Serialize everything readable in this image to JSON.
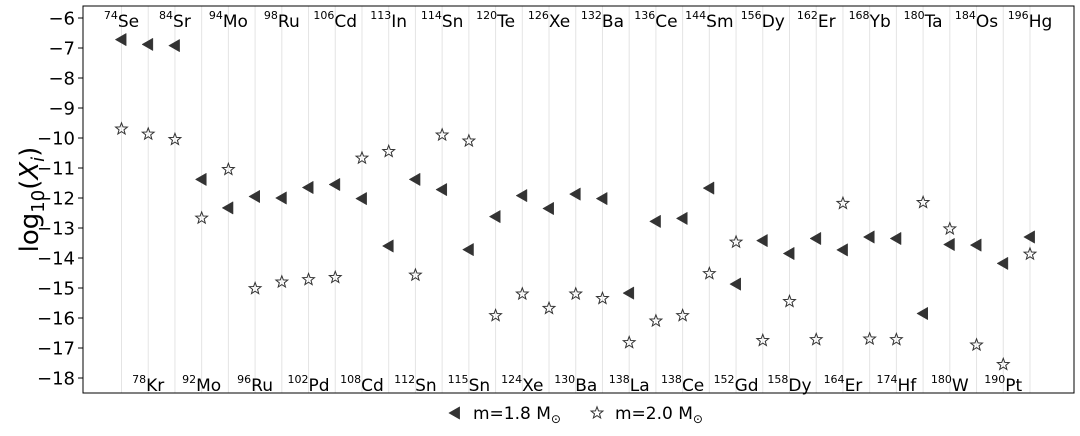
{
  "chart_data": {
    "type": "scatter",
    "title": "",
    "xlabel": "",
    "ylabel": "log10(Xi)",
    "ylabel_parts": {
      "base": "log",
      "sub": "10",
      "open": "(",
      "var": "X",
      "var_sub": "i",
      "close": ")"
    },
    "ylim": [
      -18.5,
      -5.6
    ],
    "yticks": [
      -6,
      -7,
      -8,
      -9,
      -10,
      -11,
      -12,
      -13,
      -14,
      -15,
      -16,
      -17,
      -18
    ],
    "grid": "vertical lines at each isotope",
    "legend_position": "bottom-center",
    "categories": [
      {
        "mass": "74",
        "el": "Se",
        "label_row": "top"
      },
      {
        "mass": "78",
        "el": "Kr",
        "label_row": "bottom"
      },
      {
        "mass": "84",
        "el": "Sr",
        "label_row": "top"
      },
      {
        "mass": "92",
        "el": "Mo",
        "label_row": "bottom"
      },
      {
        "mass": "94",
        "el": "Mo",
        "label_row": "top"
      },
      {
        "mass": "96",
        "el": "Ru",
        "label_row": "bottom"
      },
      {
        "mass": "98",
        "el": "Ru",
        "label_row": "top"
      },
      {
        "mass": "102",
        "el": "Pd",
        "label_row": "bottom"
      },
      {
        "mass": "106",
        "el": "Cd",
        "label_row": "top"
      },
      {
        "mass": "108",
        "el": "Cd",
        "label_row": "bottom"
      },
      {
        "mass": "113",
        "el": "In",
        "label_row": "top"
      },
      {
        "mass": "112",
        "el": "Sn",
        "label_row": "bottom"
      },
      {
        "mass": "114",
        "el": "Sn",
        "label_row": "top"
      },
      {
        "mass": "115",
        "el": "Sn",
        "label_row": "bottom"
      },
      {
        "mass": "120",
        "el": "Te",
        "label_row": "top"
      },
      {
        "mass": "124",
        "el": "Xe",
        "label_row": "bottom"
      },
      {
        "mass": "126",
        "el": "Xe",
        "label_row": "top"
      },
      {
        "mass": "130",
        "el": "Ba",
        "label_row": "bottom"
      },
      {
        "mass": "132",
        "el": "Ba",
        "label_row": "top"
      },
      {
        "mass": "138",
        "el": "La",
        "label_row": "bottom"
      },
      {
        "mass": "136",
        "el": "Ce",
        "label_row": "top"
      },
      {
        "mass": "138",
        "el": "Ce",
        "label_row": "bottom"
      },
      {
        "mass": "144",
        "el": "Sm",
        "label_row": "top"
      },
      {
        "mass": "152",
        "el": "Gd",
        "label_row": "bottom"
      },
      {
        "mass": "156",
        "el": "Dy",
        "label_row": "top"
      },
      {
        "mass": "158",
        "el": "Dy",
        "label_row": "bottom"
      },
      {
        "mass": "162",
        "el": "Er",
        "label_row": "top"
      },
      {
        "mass": "164",
        "el": "Er",
        "label_row": "bottom"
      },
      {
        "mass": "168",
        "el": "Yb",
        "label_row": "top"
      },
      {
        "mass": "174",
        "el": "Hf",
        "label_row": "bottom"
      },
      {
        "mass": "180",
        "el": "Ta",
        "label_row": "top"
      },
      {
        "mass": "180",
        "el": "W",
        "label_row": "bottom"
      },
      {
        "mass": "184",
        "el": "Os",
        "label_row": "top"
      },
      {
        "mass": "190",
        "el": "Pt",
        "label_row": "bottom"
      },
      {
        "mass": "196",
        "el": "Hg",
        "label_row": "top"
      }
    ],
    "series": [
      {
        "name": "m=1.8 M",
        "name_sub": "⊙",
        "marker": "triangle-left",
        "color": "#333333",
        "values": [
          -6.72,
          -6.88,
          -6.92,
          -11.38,
          -12.33,
          -11.95,
          -12.0,
          -11.65,
          -11.55,
          -12.02,
          -13.6,
          -11.38,
          -11.72,
          -13.72,
          -12.62,
          -11.92,
          -12.35,
          -11.87,
          -12.02,
          -15.17,
          -12.78,
          -12.68,
          -11.67,
          -14.87,
          -13.42,
          -13.85,
          -13.35,
          -13.73,
          -13.3,
          -13.35,
          -15.85,
          -13.55,
          -13.57,
          -14.18,
          -13.3
        ]
      },
      {
        "name": "m=2.0 M",
        "name_sub": "⊙",
        "marker": "star-open",
        "color": "#333333",
        "values": [
          -9.7,
          -9.87,
          -10.05,
          -12.67,
          -11.05,
          -15.02,
          -14.8,
          -14.72,
          -14.65,
          -10.67,
          -10.45,
          -14.57,
          -9.9,
          -10.1,
          -15.92,
          -15.2,
          -15.68,
          -15.2,
          -15.35,
          -16.82,
          -16.1,
          -15.92,
          -14.52,
          -13.47,
          -16.75,
          -15.45,
          -16.72,
          -12.18,
          -16.7,
          -16.72,
          -12.15,
          -13.03,
          -16.9,
          -17.55,
          -13.87
        ]
      }
    ]
  }
}
